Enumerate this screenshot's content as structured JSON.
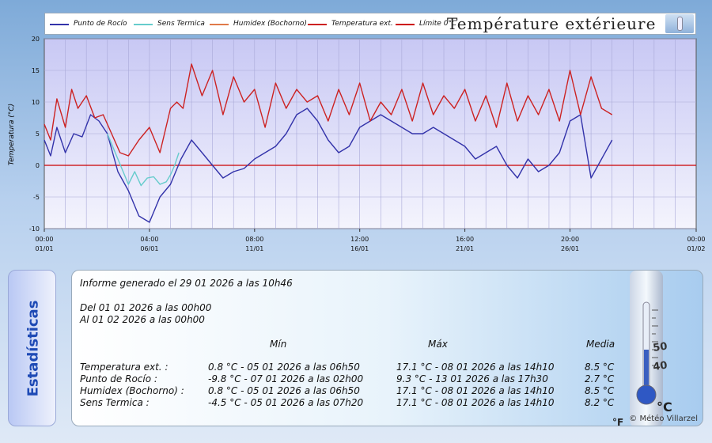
{
  "chart_data": {
    "type": "line",
    "title": "Température extérieure",
    "ylabel": "Temperatura (°C)",
    "ylim": [
      -10,
      20
    ],
    "yticks": [
      20,
      15,
      10,
      5,
      0,
      -5,
      -10
    ],
    "xticks": [
      {
        "time": "00:00",
        "date": "01/01",
        "day": 0
      },
      {
        "time": "04:00",
        "date": "06/01",
        "day": 5
      },
      {
        "time": "08:00",
        "date": "11/01",
        "day": 10
      },
      {
        "time": "12:00",
        "date": "16/01",
        "day": 15
      },
      {
        "time": "16:00",
        "date": "21/01",
        "day": 20
      },
      {
        "time": "20:00",
        "date": "26/01",
        "day": 25
      },
      {
        "time": "00:00",
        "date": "01/02",
        "day": 31
      }
    ],
    "xlim": [
      0,
      31
    ],
    "reference_line": {
      "name": "Límite 0°C",
      "value": 0,
      "color": "#cc0000"
    },
    "series": [
      {
        "name": "Punto de Rocío",
        "color": "#3333aa",
        "x": [
          0,
          0.3,
          0.6,
          1,
          1.4,
          1.8,
          2.2,
          2.6,
          3,
          3.5,
          4,
          4.5,
          5,
          5.5,
          6,
          6.5,
          7,
          7.5,
          8,
          8.5,
          9,
          9.5,
          10,
          10.5,
          11,
          11.5,
          12,
          12.5,
          13,
          13.5,
          14,
          14.5,
          15,
          15.5,
          16,
          16.5,
          17,
          17.5,
          18,
          18.5,
          19,
          19.5,
          20,
          20.5,
          21,
          21.5,
          22,
          22.5,
          23,
          23.5,
          24,
          24.5,
          25,
          25.5,
          26,
          26.5,
          27
        ],
        "y": [
          4,
          1.5,
          6,
          2,
          5,
          4.5,
          8,
          7,
          5,
          -1,
          -4,
          -8,
          -9,
          -5,
          -3,
          1,
          4,
          2,
          0,
          -2,
          -1,
          -0.5,
          1,
          2,
          3,
          5,
          8,
          9,
          7,
          4,
          2,
          3,
          6,
          7,
          8,
          7,
          6,
          5,
          5,
          6,
          5,
          4,
          3,
          1,
          2,
          3,
          0,
          -2,
          1,
          -1,
          0,
          2,
          7,
          8,
          -2,
          1,
          4
        ]
      },
      {
        "name": "Sens Termica",
        "color": "#66cccc",
        "x": [
          3,
          3.5,
          4,
          4.3,
          4.6,
          4.9,
          5.2,
          5.5,
          5.8,
          6,
          6.2,
          6.4
        ],
        "y": [
          5,
          1,
          -3,
          -1,
          -3.2,
          -2,
          -1.8,
          -3,
          -2.6,
          -1.5,
          0,
          2
        ]
      },
      {
        "name": "Humidex (Bochorno)",
        "color": "#e07a4a",
        "x": [],
        "y": []
      },
      {
        "name": "Temperatura ext.",
        "color": "#cc2222",
        "x": [
          0,
          0.3,
          0.6,
          1,
          1.3,
          1.6,
          2,
          2.4,
          2.8,
          3.2,
          3.6,
          4,
          4.5,
          5,
          5.5,
          6,
          6.3,
          6.6,
          7,
          7.5,
          8,
          8.5,
          9,
          9.5,
          10,
          10.5,
          11,
          11.5,
          12,
          12.5,
          13,
          13.5,
          14,
          14.5,
          15,
          15.5,
          16,
          16.5,
          17,
          17.5,
          18,
          18.5,
          19,
          19.5,
          20,
          20.5,
          21,
          21.5,
          22,
          22.5,
          23,
          23.5,
          24,
          24.5,
          25,
          25.5,
          26,
          26.5,
          27
        ],
        "y": [
          6.5,
          4,
          10.5,
          6,
          12,
          9,
          11,
          7.5,
          8,
          5,
          2,
          1.5,
          4,
          6,
          2,
          9,
          10,
          9,
          16,
          11,
          15,
          8,
          14,
          10,
          12,
          6,
          13,
          9,
          12,
          10,
          11,
          7,
          12,
          8,
          13,
          7,
          10,
          8,
          12,
          7,
          13,
          8,
          11,
          9,
          12,
          7,
          11,
          6,
          13,
          7,
          11,
          8,
          12,
          7,
          15,
          8,
          14,
          9,
          8
        ]
      }
    ]
  },
  "legend": {
    "title": "Température extérieure",
    "items": [
      {
        "label": "Punto de Rocío",
        "color": "#3333aa"
      },
      {
        "label": "Sens Termica",
        "color": "#66cccc"
      },
      {
        "label": "Humidex (Bochorno)",
        "color": "#e07a4a"
      },
      {
        "label": "Temperatura ext.",
        "color": "#cc2222"
      },
      {
        "label": "Límite 0°C",
        "color": "#cc0000"
      }
    ]
  },
  "stats": {
    "tab_label": "Estadísticas",
    "report_line": "Informe generado el 29 01 2026 a las 10h46",
    "from_line": "Del 01 01 2026 a las 00h00",
    "to_line": "Al 01 02 2026 a las 00h00",
    "headers": {
      "min": "Mín",
      "max": "Máx",
      "avg": "Media"
    },
    "rows": [
      {
        "label": "Temperatura ext. :",
        "min": "0.8 °C - 05 01 2026 a las 06h50",
        "max": "17.1 °C - 08 01 2026 a las 14h10",
        "avg": "8.5 °C"
      },
      {
        "label": "Punto de Rocío :",
        "min": "-9.8 °C - 07 01 2026 a las 02h00",
        "max": "9.3 °C - 13 01 2026 a las 17h30",
        "avg": "2.7 °C"
      },
      {
        "label": "Humidex (Bochorno) :",
        "min": "0.8 °C - 05 01 2026 a las 06h50",
        "max": "17.1 °C - 08 01 2026 a las 14h10",
        "avg": "8.5 °C"
      },
      {
        "label": "Sens Termica :",
        "min": "-4.5 °C - 05 01 2026 a las 07h20",
        "max": "17.1 °C - 08 01 2026 a las 14h10",
        "avg": "8.2 °C"
      }
    ],
    "watermark": "© Météo Villarzel",
    "thermo_unit": "°C",
    "thermo_unit_f": "°F",
    "thermo_scale": [
      "40",
      "50"
    ]
  }
}
